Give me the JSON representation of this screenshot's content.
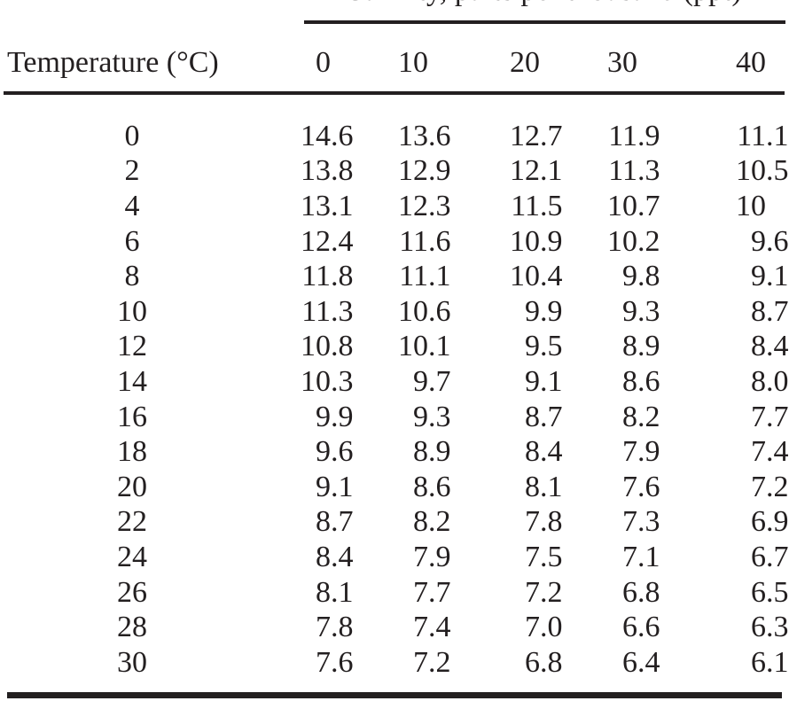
{
  "colors": {
    "background": "#ffffff",
    "text": "#231f20",
    "rule": "#231f20"
  },
  "chart_data": {
    "type": "table",
    "title": "Salinity, parts per thousand (ppt)",
    "title_note": "cropped at top edge of image; only letter bottoms visible",
    "row_axis_label": "Temperature (°C)",
    "columns": [
      "0",
      "10",
      "20",
      "30",
      "40"
    ],
    "rows": [
      {
        "temperature": "0",
        "values": [
          "14.6",
          "13.6",
          "12.7",
          "11.9",
          "11.1"
        ]
      },
      {
        "temperature": "2",
        "values": [
          "13.8",
          "12.9",
          "12.1",
          "11.3",
          "10.5"
        ]
      },
      {
        "temperature": "4",
        "values": [
          "13.1",
          "12.3",
          "11.5",
          "10.7",
          "10"
        ]
      },
      {
        "temperature": "6",
        "values": [
          "12.4",
          "11.6",
          "10.9",
          "10.2",
          "9.6"
        ]
      },
      {
        "temperature": "8",
        "values": [
          "11.8",
          "11.1",
          "10.4",
          "9.8",
          "9.1"
        ]
      },
      {
        "temperature": "10",
        "values": [
          "11.3",
          "10.6",
          "9.9",
          "9.3",
          "8.7"
        ]
      },
      {
        "temperature": "12",
        "values": [
          "10.8",
          "10.1",
          "9.5",
          "8.9",
          "8.4"
        ]
      },
      {
        "temperature": "14",
        "values": [
          "10.3",
          "9.7",
          "9.1",
          "8.6",
          "8.0"
        ]
      },
      {
        "temperature": "16",
        "values": [
          "9.9",
          "9.3",
          "8.7",
          "8.2",
          "7.7"
        ]
      },
      {
        "temperature": "18",
        "values": [
          "9.6",
          "8.9",
          "8.4",
          "7.9",
          "7.4"
        ]
      },
      {
        "temperature": "20",
        "values": [
          "9.1",
          "8.6",
          "8.1",
          "7.6",
          "7.2"
        ]
      },
      {
        "temperature": "22",
        "values": [
          "8.7",
          "8.2",
          "7.8",
          "7.3",
          "6.9"
        ]
      },
      {
        "temperature": "24",
        "values": [
          "8.4",
          "7.9",
          "7.5",
          "7.1",
          "6.7"
        ]
      },
      {
        "temperature": "26",
        "values": [
          "8.1",
          "7.7",
          "7.2",
          "6.8",
          "6.5"
        ]
      },
      {
        "temperature": "28",
        "values": [
          "7.8",
          "7.4",
          "7.0",
          "6.6",
          "6.3"
        ]
      },
      {
        "temperature": "30",
        "values": [
          "7.6",
          "7.2",
          "6.8",
          "6.4",
          "6.1"
        ]
      }
    ]
  }
}
